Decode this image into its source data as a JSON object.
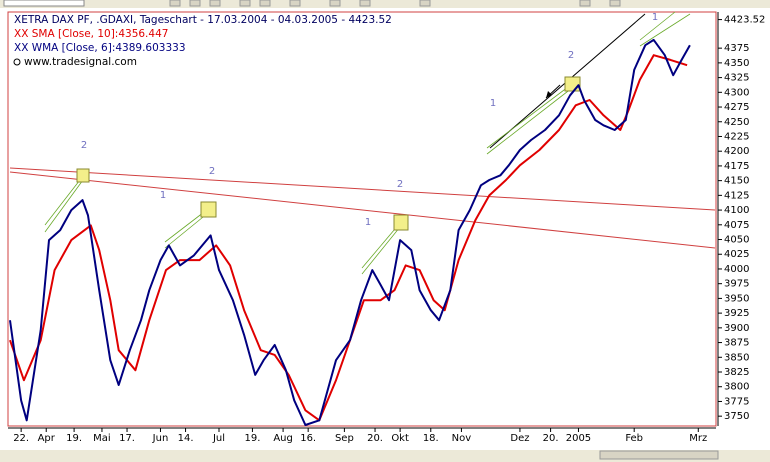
{
  "chart_data": {
    "type": "line",
    "title": "XETRA DAX PF, .GDAXI, Tageschart - 17.03.2004 - 04.03.2005 - 4423.52",
    "source": "www.tradesignal.com",
    "last_value": 4423.52,
    "xlim": [
      0,
      253
    ],
    "ylim": [
      3735,
      4433
    ],
    "xticks": [
      {
        "value": 4,
        "label": "22."
      },
      {
        "value": 13,
        "label": "Apr"
      },
      {
        "value": 23,
        "label": "19."
      },
      {
        "value": 33,
        "label": "Mai"
      },
      {
        "value": 42,
        "label": "17."
      },
      {
        "value": 54,
        "label": "Jun"
      },
      {
        "value": 63,
        "label": "14."
      },
      {
        "value": 75,
        "label": "Jul"
      },
      {
        "value": 87,
        "label": "19."
      },
      {
        "value": 98,
        "label": "Aug"
      },
      {
        "value": 107,
        "label": "16."
      },
      {
        "value": 120,
        "label": "Sep"
      },
      {
        "value": 131,
        "label": "20."
      },
      {
        "value": 140,
        "label": "Okt"
      },
      {
        "value": 151,
        "label": "18."
      },
      {
        "value": 162,
        "label": "Nov"
      },
      {
        "value": 183,
        "label": "Dez"
      },
      {
        "value": 194,
        "label": "20."
      },
      {
        "value": 204,
        "label": "2005"
      },
      {
        "value": 224,
        "label": "Feb"
      },
      {
        "value": 247,
        "label": "Mrz"
      }
    ],
    "yticks": [
      3750,
      3775,
      3800,
      3825,
      3850,
      3875,
      3900,
      3925,
      3950,
      3975,
      4000,
      4025,
      4050,
      4075,
      4100,
      4125,
      4150,
      4175,
      4200,
      4225,
      4250,
      4275,
      4300,
      4325,
      4350,
      4375
    ],
    "wave_labels": [
      "2",
      "1",
      "2",
      "1",
      "2",
      "1",
      "2",
      "1"
    ],
    "series": [
      {
        "name": "XX SMA [Close, 10]:4356.447",
        "color": "#e00000",
        "x": [
          0,
          5,
          11,
          16,
          22,
          29,
          32,
          36,
          39,
          45,
          50,
          56,
          61,
          68,
          74,
          79,
          84,
          90,
          95,
          100,
          106,
          111,
          117,
          122,
          127,
          133,
          138,
          142,
          147,
          152,
          156,
          161,
          167,
          172,
          178,
          183,
          190,
          197,
          203,
          208,
          213,
          219,
          222,
          226,
          231,
          237,
          243
        ],
        "values": [
          3879,
          3811,
          3879,
          3998,
          4049,
          4074,
          4032,
          3947,
          3862,
          3828,
          3913,
          3998,
          4015,
          4015,
          4040,
          4006,
          3930,
          3862,
          3854,
          3820,
          3760,
          3743,
          3811,
          3879,
          3947,
          3947,
          3964,
          4006,
          3998,
          3947,
          3930,
          4015,
          4083,
          4125,
          4151,
          4176,
          4202,
          4236,
          4278,
          4287,
          4261,
          4236,
          4270,
          4321,
          4363,
          4355,
          4346
        ]
      },
      {
        "name": "XX WMA [Close, 6]:4389.603333",
        "color": "#000080",
        "x": [
          0,
          4,
          6,
          11,
          14,
          18,
          22,
          26,
          28,
          32,
          36,
          39,
          43,
          47,
          50,
          54,
          57,
          61,
          66,
          72,
          75,
          80,
          84,
          88,
          91,
          95,
          99,
          102,
          106,
          111,
          117,
          122,
          126,
          130,
          133,
          136,
          140,
          144,
          147,
          151,
          154,
          158,
          161,
          165,
          169,
          172,
          176,
          179,
          183,
          187,
          192,
          197,
          201,
          204,
          206,
          210,
          213,
          217,
          221,
          224,
          228,
          231,
          235,
          238,
          241,
          244
        ],
        "values": [
          3913,
          3777,
          3743,
          3896,
          4049,
          4066,
          4100,
          4117,
          4091,
          3964,
          3845,
          3803,
          3862,
          3913,
          3964,
          4015,
          4040,
          4006,
          4023,
          4057,
          3998,
          3947,
          3888,
          3820,
          3845,
          3871,
          3828,
          3777,
          3735,
          3743,
          3845,
          3879,
          3947,
          3998,
          3973,
          3947,
          4049,
          4032,
          3964,
          3930,
          3913,
          3964,
          4066,
          4100,
          4142,
          4151,
          4159,
          4176,
          4202,
          4219,
          4236,
          4261,
          4295,
          4312,
          4287,
          4253,
          4244,
          4236,
          4253,
          4338,
          4380,
          4389,
          4363,
          4329,
          4355,
          4380
        ]
      }
    ]
  }
}
